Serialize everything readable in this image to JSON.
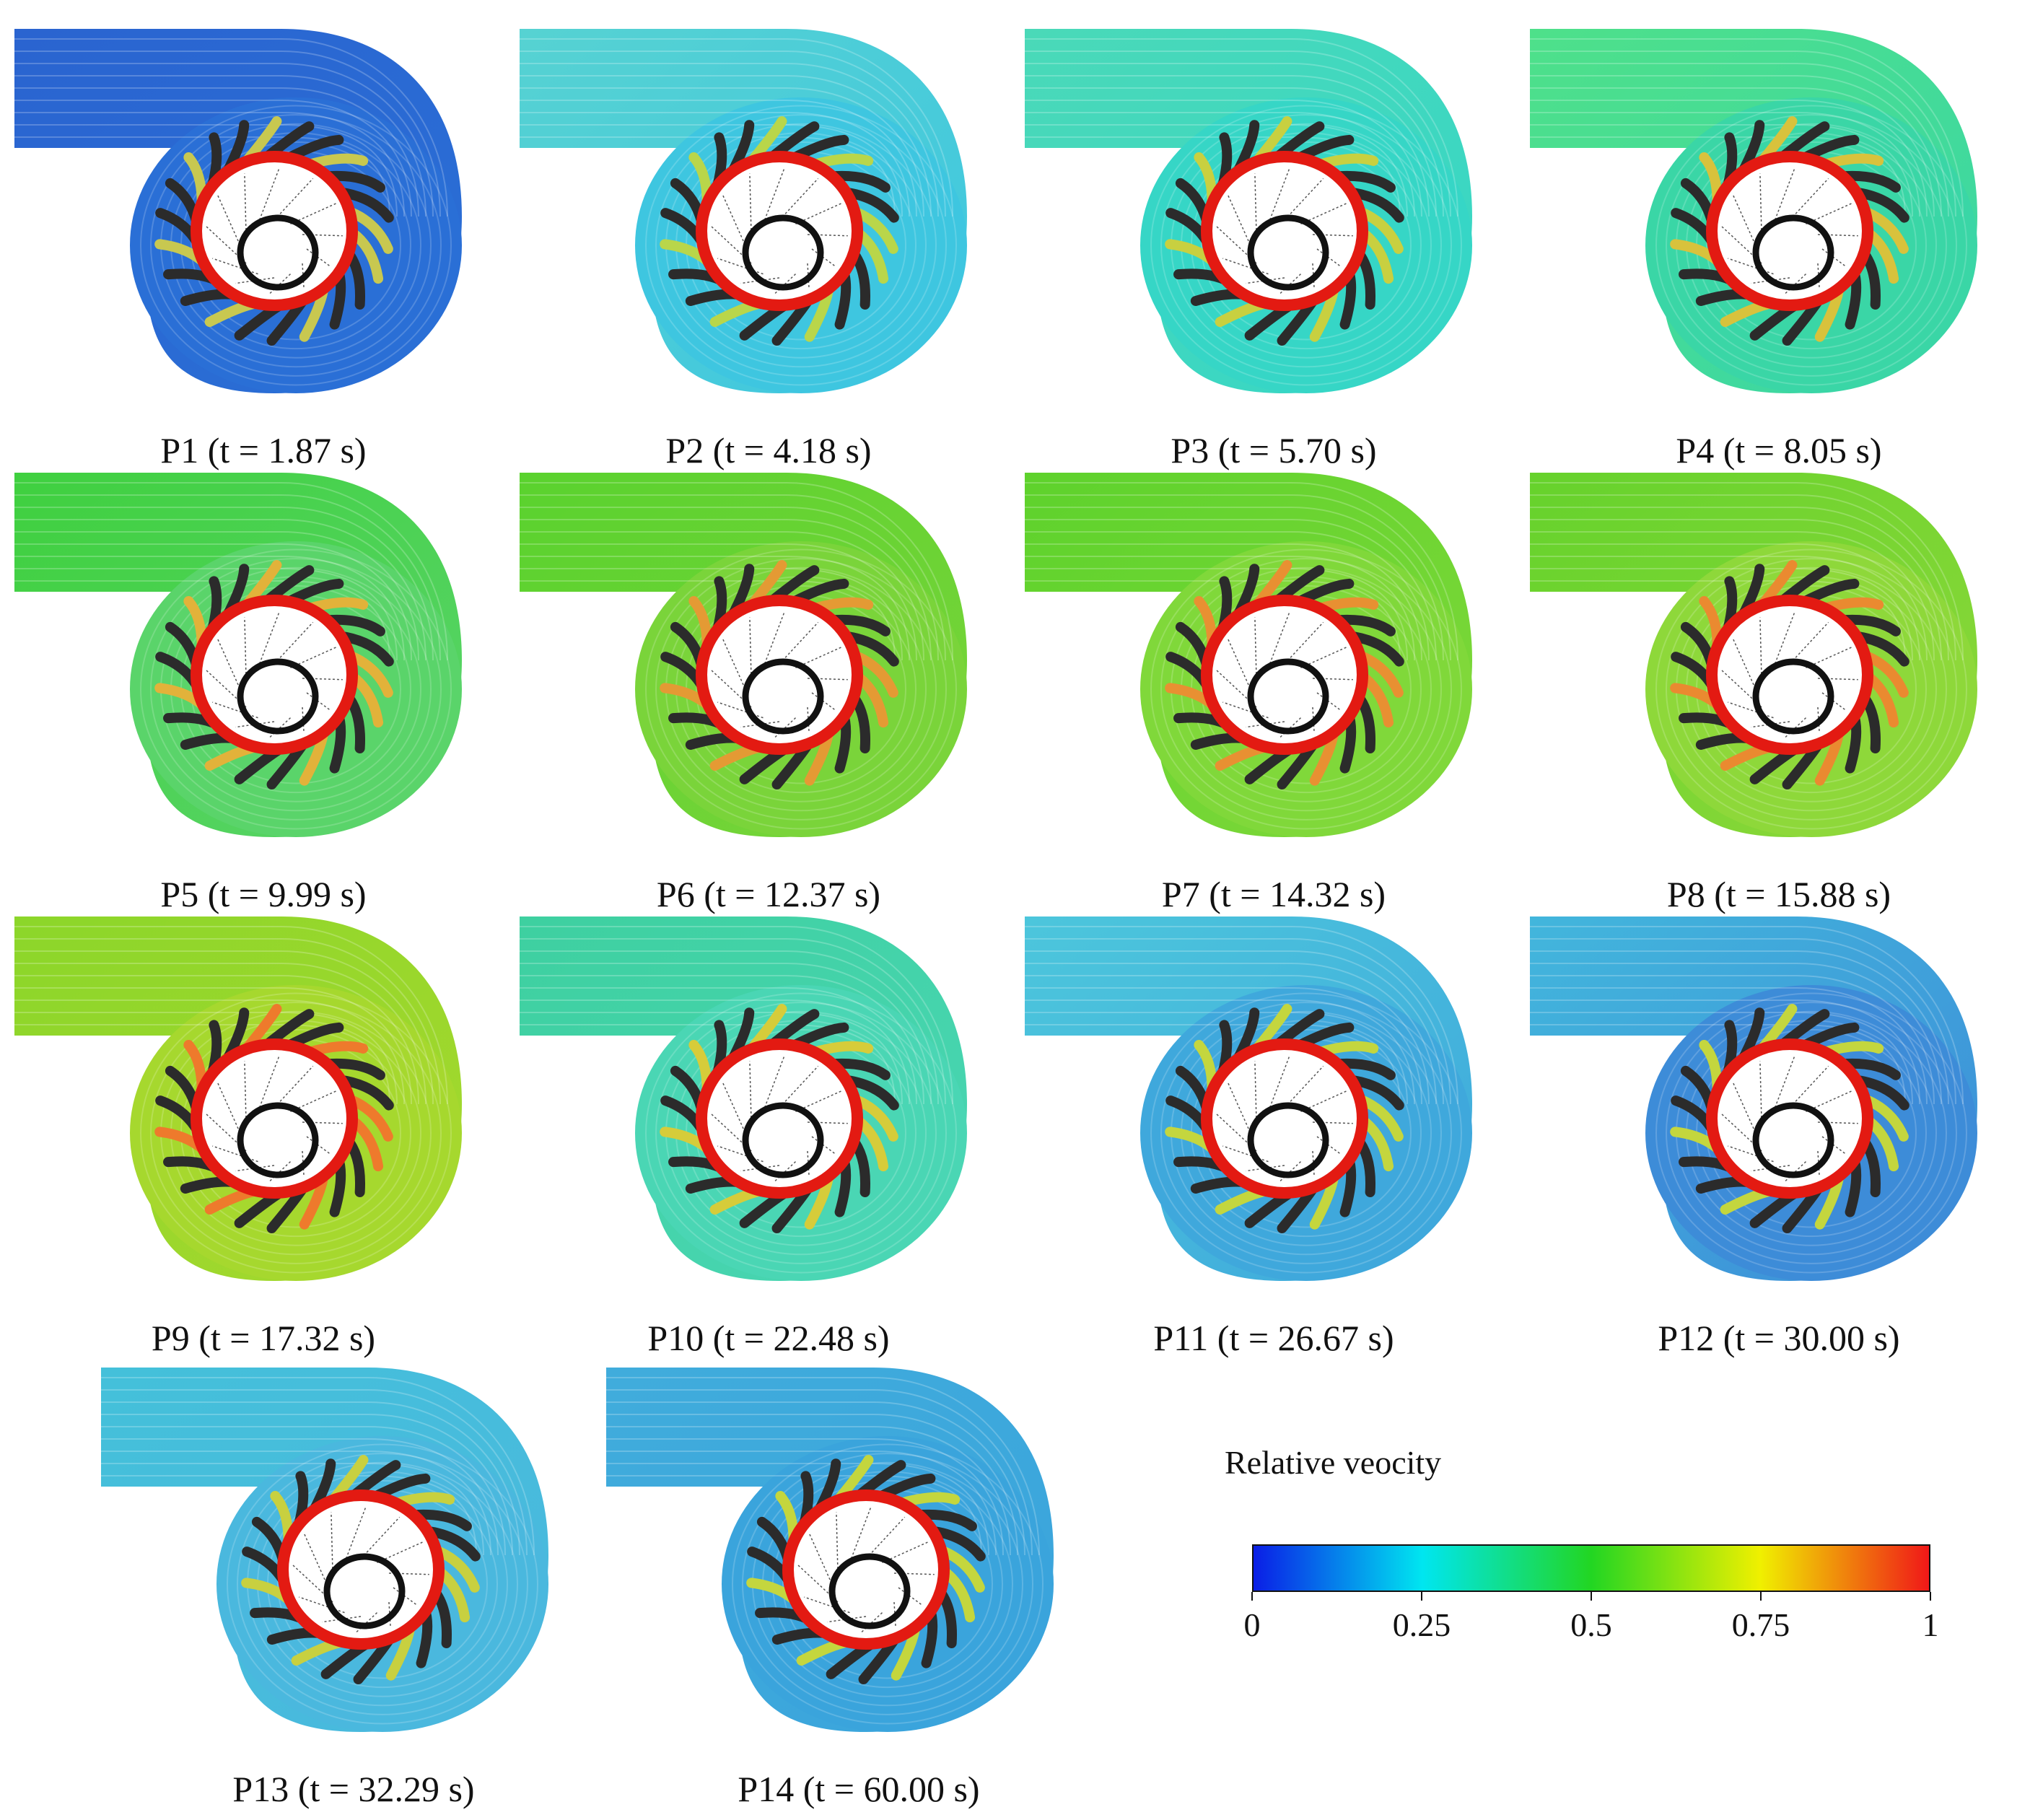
{
  "figure": {
    "panels": [
      {
        "id": "P1",
        "label": "P1 (t = 1.87 s)",
        "time_s": 1.87,
        "flow": "#2a6fd6",
        "inlet": "#2a64d0",
        "blade": "#c8c850"
      },
      {
        "id": "P2",
        "label": "P2 (t = 4.18 s)",
        "time_s": 4.18,
        "flow": "#3ec6e0",
        "inlet": "#56d2d2",
        "blade": "#b9d64a"
      },
      {
        "id": "P3",
        "label": "P3 (t = 5.70 s)",
        "time_s": 5.7,
        "flow": "#36d6c6",
        "inlet": "#4ad9b8",
        "blade": "#c8d040"
      },
      {
        "id": "P4",
        "label": "P4 (t = 8.05 s)",
        "time_s": 8.05,
        "flow": "#3ad6a6",
        "inlet": "#4ee08a",
        "blade": "#d8c23c"
      },
      {
        "id": "P5",
        "label": "P5 (t = 9.99 s)",
        "time_s": 9.99,
        "flow": "#5ad46a",
        "inlet": "#3fd03f",
        "blade": "#e2b23a"
      },
      {
        "id": "P6",
        "label": "P6 (t = 12.37 s)",
        "time_s": 12.37,
        "flow": "#7ad43a",
        "inlet": "#5ad22e",
        "blade": "#e49a34"
      },
      {
        "id": "P7",
        "label": "P7 (t = 14.32 s)",
        "time_s": 14.32,
        "flow": "#80d83a",
        "inlet": "#5ed22c",
        "blade": "#e89032"
      },
      {
        "id": "P8",
        "label": "P8 (t = 15.88 s)",
        "time_s": 15.88,
        "flow": "#8ed83a",
        "inlet": "#66d22c",
        "blade": "#ea8a30"
      },
      {
        "id": "P9",
        "label": "P9 (t = 17.32 s)",
        "time_s": 17.32,
        "flow": "#a6d82e",
        "inlet": "#8cd62a",
        "blade": "#ee7a2c"
      },
      {
        "id": "P10",
        "label": "P10 (t = 22.48 s)",
        "time_s": 22.48,
        "flow": "#4ad6b4",
        "inlet": "#3ed0a0",
        "blade": "#d6cc3a"
      },
      {
        "id": "P11",
        "label": "P11 (t = 26.67 s)",
        "time_s": 26.67,
        "flow": "#3fa8dc",
        "inlet": "#4cc6dc",
        "blade": "#c4d63e"
      },
      {
        "id": "P12",
        "label": "P12 (t = 30.00 s)",
        "time_s": 30.0,
        "flow": "#3d8cd8",
        "inlet": "#42b6dc",
        "blade": "#c4d63e"
      },
      {
        "id": "P13",
        "label": "P13 (t = 32.29 s)",
        "time_s": 32.29,
        "flow": "#4ab8de",
        "inlet": "#44c0da",
        "blade": "#c8d040"
      },
      {
        "id": "P14",
        "label": "P14 (t = 60.00 s)",
        "time_s": 60.0,
        "flow": "#3aa4dc",
        "inlet": "#40acdc",
        "blade": "#c4d63e"
      }
    ]
  },
  "legend": {
    "title": "Relative veocity",
    "ticks": [
      "0",
      "0.25",
      "0.5",
      "0.75",
      "1"
    ],
    "tick_values": [
      0,
      0.25,
      0.5,
      0.75,
      1
    ],
    "range": [
      0,
      1
    ],
    "colormap": [
      "#0a1ee6",
      "#00e6f0",
      "#22d622",
      "#f0f000",
      "#f01818"
    ]
  },
  "colors": {
    "rim": "#e31a12",
    "dark_blade": "#2b2b2b",
    "hub": "#111111"
  }
}
